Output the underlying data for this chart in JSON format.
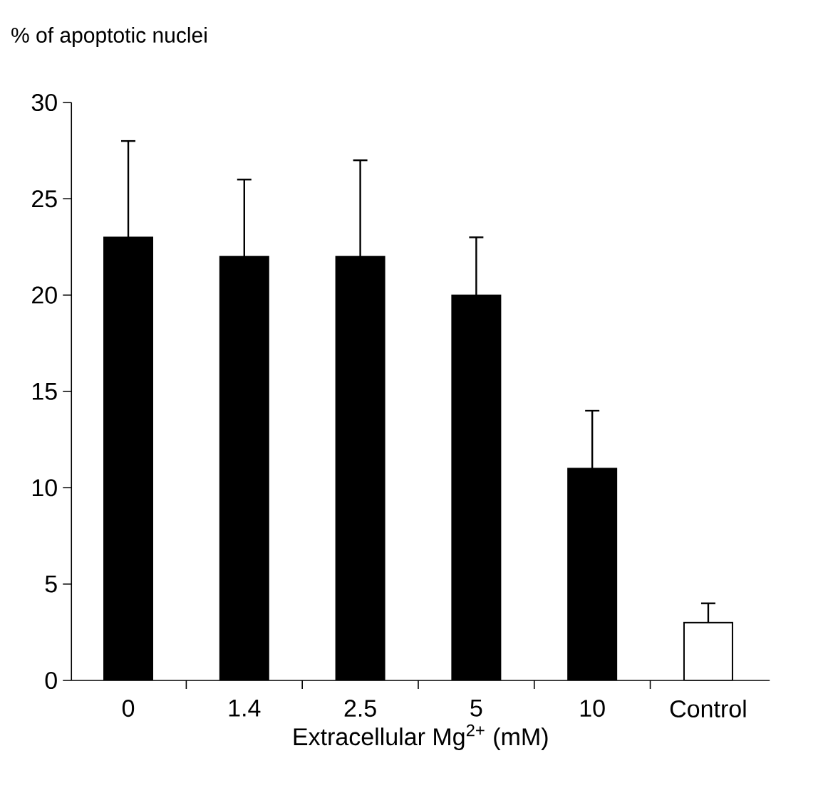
{
  "chart_data": {
    "type": "bar",
    "ylabel": "% of apoptotic nuclei",
    "xlabel": "Extracellular  Mg$^{2+}$ (mM)",
    "categories": [
      "0",
      "1.4",
      "2.5",
      "5",
      "10",
      "Control"
    ],
    "values": [
      23,
      22,
      22,
      20,
      11,
      3
    ],
    "errors": [
      [
        23,
        28
      ],
      [
        22,
        26
      ],
      [
        22,
        27
      ],
      [
        20,
        23
      ],
      [
        11,
        14
      ],
      [
        3,
        4
      ]
    ],
    "colors": [
      "#000000",
      "#000000",
      "#000000",
      "#000000",
      "#000000",
      "#ffffff"
    ],
    "ylim": [
      0,
      30
    ],
    "yticks": [
      0,
      5,
      10,
      15,
      20,
      25,
      30
    ]
  }
}
